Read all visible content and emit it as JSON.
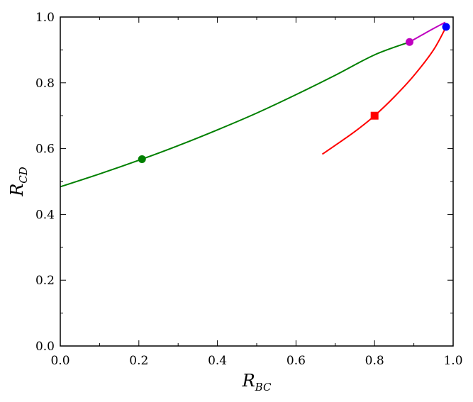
{
  "chart_data": {
    "type": "line",
    "title": "",
    "xlabel": {
      "main": "R",
      "sub": "BC"
    },
    "ylabel": {
      "main": "R",
      "sub": "CD"
    },
    "xlim": [
      0.0,
      1.0
    ],
    "ylim": [
      0.0,
      1.0
    ],
    "xticks": [
      0.0,
      0.2,
      0.4,
      0.6,
      0.8,
      1.0
    ],
    "yticks": [
      0.0,
      0.2,
      0.4,
      0.6,
      0.8,
      1.0
    ],
    "xtick_labels": [
      "0.0",
      "0.2",
      "0.4",
      "0.6",
      "0.8",
      "1.0"
    ],
    "ytick_labels": [
      "0.0",
      "0.2",
      "0.4",
      "0.6",
      "0.8",
      "1.0"
    ],
    "grid": false,
    "series": [
      {
        "color": "#008000",
        "x": [
          0.0,
          0.1,
          0.208,
          0.3,
          0.4,
          0.5,
          0.6,
          0.7,
          0.8,
          0.889
        ],
        "y": [
          0.484,
          0.523,
          0.568,
          0.609,
          0.657,
          0.708,
          0.764,
          0.823,
          0.885,
          0.924
        ],
        "markers": [
          {
            "x": 0.208,
            "y": 0.568,
            "shape": "circle"
          },
          {
            "x": 0.889,
            "y": 0.924,
            "shape": "circle",
            "color": "#bf00bf"
          }
        ]
      },
      {
        "color": "#bf00bf",
        "x": [
          0.889,
          0.92,
          0.95,
          0.98
        ],
        "y": [
          0.924,
          0.945,
          0.965,
          0.984
        ],
        "markers": []
      },
      {
        "color": "#ff0000",
        "x": [
          0.667,
          0.7,
          0.75,
          0.8,
          0.85,
          0.9,
          0.95,
          0.982
        ],
        "y": [
          0.583,
          0.61,
          0.652,
          0.7,
          0.757,
          0.822,
          0.9,
          0.97
        ],
        "markers": [
          {
            "x": 0.8,
            "y": 0.7,
            "shape": "square"
          },
          {
            "x": 0.982,
            "y": 0.97,
            "shape": "circle",
            "color": "#0000ff"
          }
        ]
      }
    ]
  }
}
